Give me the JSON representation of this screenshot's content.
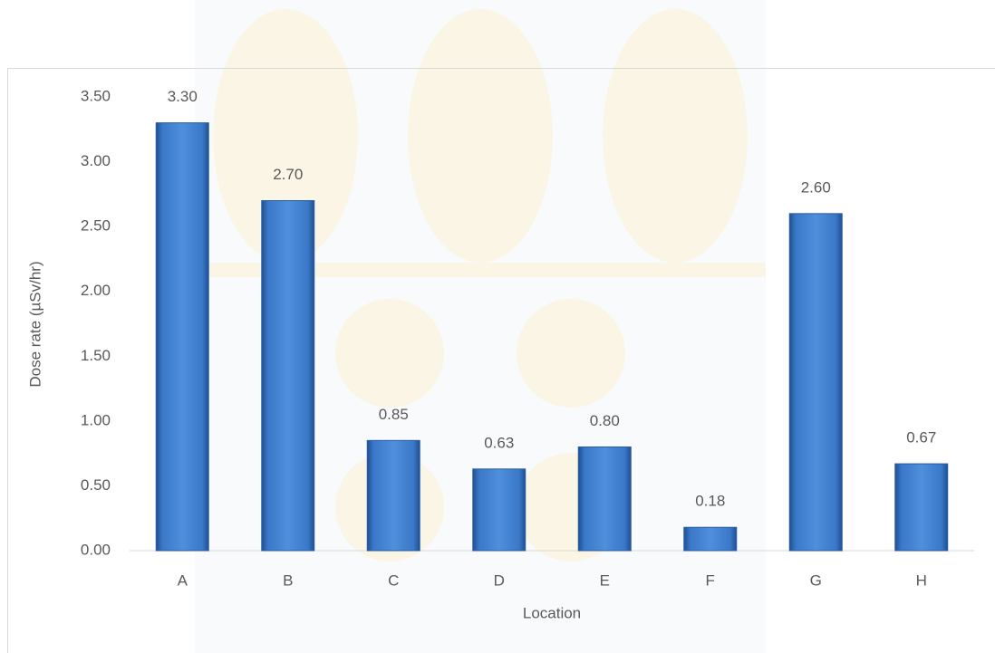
{
  "chart_data": {
    "type": "bar",
    "x_label": "Location",
    "y_label": "Dose rate (µSv/hr)",
    "categories": [
      "A",
      "B",
      "C",
      "D",
      "E",
      "F",
      "G",
      "H"
    ],
    "values": [
      3.3,
      2.7,
      0.85,
      0.63,
      0.8,
      0.18,
      2.6,
      0.67
    ],
    "value_labels": [
      "3.30",
      "2.70",
      "0.85",
      "0.63",
      "0.80",
      "0.18",
      "2.60",
      "0.67"
    ],
    "color": "#3f7fcf",
    "ylim": [
      0,
      3.5
    ],
    "yticks": [
      {
        "value": 0,
        "label": "0.00"
      },
      {
        "value": 0.5,
        "label": "0.50"
      },
      {
        "value": 1,
        "label": "1.00"
      },
      {
        "value": 1.5,
        "label": "1.50"
      },
      {
        "value": 2,
        "label": "2.00"
      },
      {
        "value": 2.5,
        "label": "2.50"
      },
      {
        "value": 3,
        "label": "3.00"
      },
      {
        "value": 3.5,
        "label": "3.50"
      }
    ],
    "grid": false
  }
}
